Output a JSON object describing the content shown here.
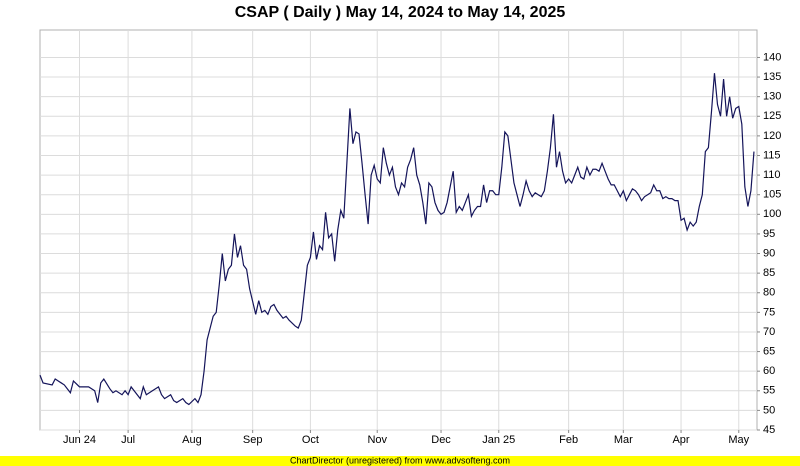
{
  "chart_data": {
    "type": "line",
    "title": "CSAP ( Daily ) May 14, 2024 to May 14, 2025",
    "x": [
      0,
      1,
      4,
      5,
      7,
      8,
      10,
      11,
      13,
      16,
      18,
      19,
      20,
      21,
      23,
      24,
      25,
      27,
      28,
      29,
      30,
      32,
      33,
      34,
      35,
      37,
      39,
      40,
      41,
      43,
      44,
      45,
      47,
      48,
      49,
      51,
      52,
      53,
      54,
      55,
      57,
      58,
      59,
      60,
      61,
      62,
      63,
      64,
      65,
      66,
      67,
      68,
      69,
      71,
      72,
      73,
      74,
      75,
      76,
      77,
      78,
      80,
      81,
      82,
      84,
      85,
      86,
      87,
      88,
      89,
      90,
      91,
      92,
      93,
      94,
      95,
      96,
      97,
      98,
      99,
      100,
      101,
      102,
      103,
      104,
      105,
      106,
      107,
      108,
      109,
      110,
      111,
      112,
      113,
      114,
      115,
      116,
      117,
      118,
      119,
      120,
      121,
      122,
      123,
      124,
      125,
      126,
      127,
      128,
      129,
      130,
      131,
      132,
      133,
      134,
      135,
      136,
      137,
      138,
      139,
      140,
      141,
      142,
      143,
      144,
      145,
      146,
      147,
      148,
      149,
      150,
      151,
      152,
      153,
      154,
      155,
      156,
      157,
      158,
      159,
      160,
      161,
      162,
      163,
      164,
      165,
      166,
      167,
      168,
      169,
      170,
      171,
      172,
      173,
      174,
      175,
      176,
      177,
      178,
      179,
      180,
      181,
      182,
      183,
      184,
      185,
      186,
      187,
      188,
      189,
      190,
      191,
      192,
      193,
      194,
      195,
      196,
      197,
      198,
      199,
      200,
      201,
      202,
      203,
      204,
      205,
      206,
      207,
      208,
      209,
      210,
      211,
      212,
      213,
      214,
      215,
      216,
      217,
      218,
      219,
      220,
      221,
      222,
      223,
      224,
      225,
      226,
      227,
      228,
      229,
      230,
      231,
      232,
      233,
      234,
      235
    ],
    "values": [
      59,
      57,
      56.5,
      58,
      57,
      56.5,
      54.5,
      57.5,
      56,
      56,
      55,
      52,
      57,
      58,
      55.5,
      54.5,
      55,
      54,
      55,
      54,
      56,
      54,
      53,
      56,
      54,
      55,
      56,
      54,
      53,
      54,
      52.5,
      52,
      53,
      52,
      51.5,
      53,
      52,
      54,
      60,
      68,
      74,
      75,
      82,
      90,
      83,
      86,
      87,
      95,
      89,
      92,
      87,
      86,
      81,
      74.5,
      78,
      75,
      75.5,
      74.5,
      76.5,
      77,
      75.5,
      73.5,
      74,
      73,
      71.5,
      71,
      73,
      80,
      87,
      89,
      95.5,
      88.5,
      92,
      91,
      100.5,
      94,
      95,
      88,
      96,
      101,
      99,
      113,
      127,
      118,
      121,
      120.5,
      113,
      105,
      97.5,
      110,
      112.5,
      109,
      108,
      117,
      113,
      110,
      112,
      107,
      105,
      108,
      107,
      112,
      114,
      117,
      110,
      107.5,
      103,
      97.5,
      108,
      107,
      103,
      101,
      100,
      100.5,
      103,
      107,
      111,
      100.5,
      102,
      101,
      103,
      105,
      99.5,
      101,
      102,
      102,
      107.5,
      103,
      106,
      106,
      105,
      105,
      112,
      121,
      120,
      114,
      108,
      105,
      102,
      105,
      108.5,
      106,
      104.5,
      105.5,
      105,
      104.5,
      106,
      111,
      117,
      125.5,
      112,
      116,
      111,
      108,
      109,
      108,
      110,
      112,
      109.5,
      109,
      112,
      110,
      111.5,
      111.5,
      111,
      113,
      111,
      109,
      107.5,
      107.5,
      106,
      104.5,
      106,
      103.5,
      105,
      106.5,
      106,
      105,
      103.5,
      104.5,
      105,
      105.5,
      107.5,
      106,
      106,
      104,
      104.5,
      104,
      104,
      103.5,
      103.5,
      98.5,
      99,
      96,
      98,
      97,
      98,
      102,
      105,
      116,
      117,
      126,
      136,
      128,
      125,
      134.5,
      125,
      130,
      124.5,
      127,
      127.5,
      123,
      107,
      102,
      106,
      116
    ],
    "color": "#14145a",
    "xlim": [
      0,
      236
    ],
    "xticks": [
      {
        "value": 13,
        "label": "Jun 24"
      },
      {
        "value": 29,
        "label": "Jul"
      },
      {
        "value": 50,
        "label": "Aug"
      },
      {
        "value": 70,
        "label": "Sep"
      },
      {
        "value": 89,
        "label": "Oct"
      },
      {
        "value": 111,
        "label": "Nov"
      },
      {
        "value": 132,
        "label": "Dec"
      },
      {
        "value": 151,
        "label": "Jan 25"
      },
      {
        "value": 174,
        "label": "Feb"
      },
      {
        "value": 192,
        "label": "Mar"
      },
      {
        "value": 211,
        "label": "Apr"
      },
      {
        "value": 230,
        "label": "May"
      }
    ],
    "ylim": [
      45,
      147
    ],
    "yticks": [
      45,
      50,
      55,
      60,
      65,
      70,
      75,
      80,
      85,
      90,
      95,
      100,
      105,
      110,
      115,
      120,
      125,
      130,
      135,
      140
    ],
    "grid": true
  },
  "footer": "ChartDirector (unregistered) from www.advsofteng.com"
}
